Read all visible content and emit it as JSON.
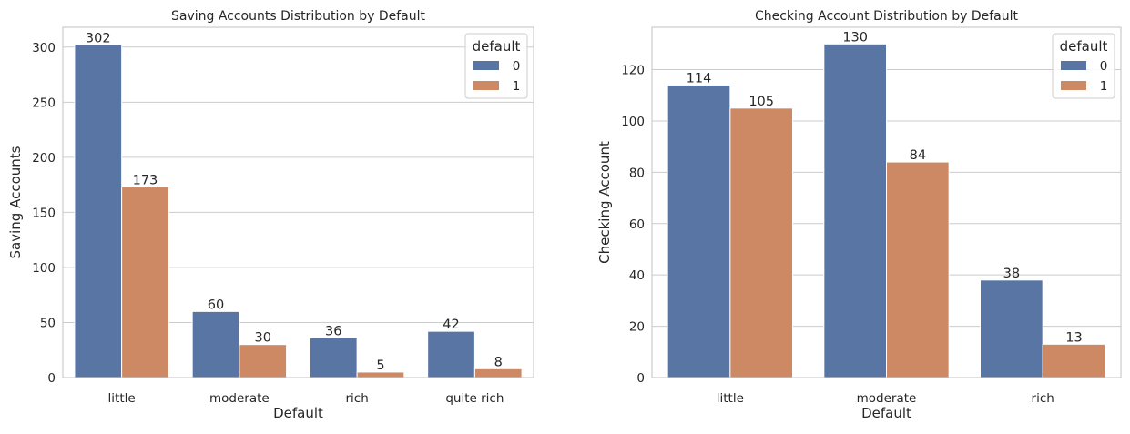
{
  "chart_data": [
    {
      "type": "bar",
      "title": "Saving Accounts Distribution by Default",
      "xlabel": "Default",
      "ylabel": "Saving Accounts",
      "categories": [
        "little",
        "moderate",
        "rich",
        "quite rich"
      ],
      "series": [
        {
          "name": "0",
          "values": [
            302,
            60,
            36,
            42
          ]
        },
        {
          "name": "1",
          "values": [
            173,
            30,
            5,
            8
          ]
        }
      ],
      "ylim": [
        0,
        318
      ],
      "yticks": [
        0,
        50,
        100,
        150,
        200,
        250,
        300
      ],
      "legend": {
        "title": "default",
        "placement": "top-right"
      },
      "grid": "y"
    },
    {
      "type": "bar",
      "title": "Checking Account Distribution by Default",
      "xlabel": "Default",
      "ylabel": "Checking Account",
      "categories": [
        "little",
        "moderate",
        "rich"
      ],
      "series": [
        {
          "name": "0",
          "values": [
            114,
            130,
            38
          ]
        },
        {
          "name": "1",
          "values": [
            105,
            84,
            13
          ]
        }
      ],
      "ylim": [
        0,
        136.5
      ],
      "yticks": [
        0,
        20,
        40,
        60,
        80,
        100,
        120
      ],
      "legend": {
        "title": "default",
        "placement": "top-right"
      },
      "grid": "y"
    }
  ],
  "colors": {
    "series_0": "#5875a4",
    "series_1": "#cc8963",
    "grid": "#cccccc",
    "frame": "#cccccc"
  }
}
